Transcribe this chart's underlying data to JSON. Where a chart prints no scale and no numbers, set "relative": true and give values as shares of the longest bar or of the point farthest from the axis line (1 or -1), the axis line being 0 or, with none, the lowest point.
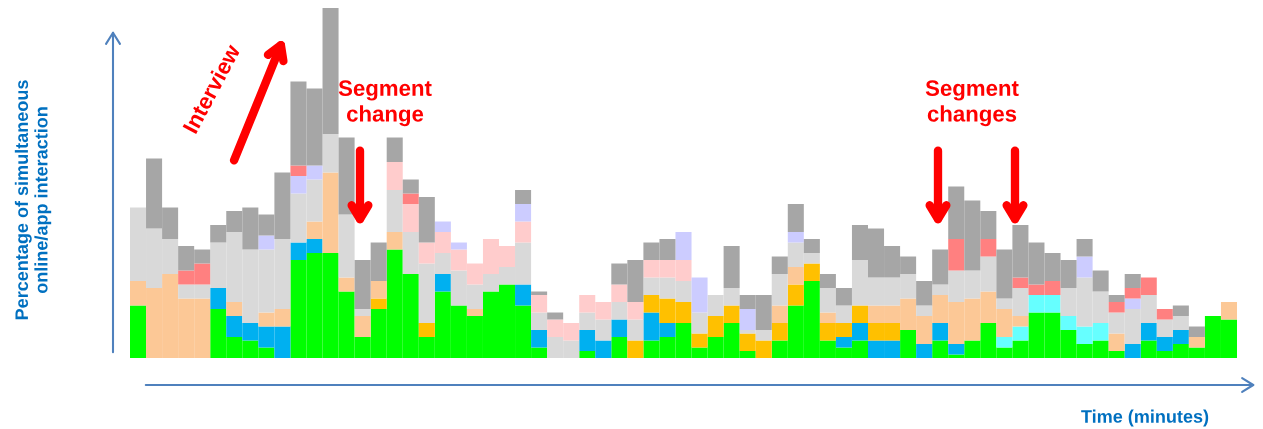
{
  "chart_data": {
    "type": "bar",
    "stacked": true,
    "relative": true,
    "xlabel": "Time (minutes)",
    "ylabel": "Percentage of simultaneous\nonline/app interaction",
    "annotations": [
      "Interview",
      "Segment\nchange",
      "Segment\nchanges"
    ],
    "categories": [
      null,
      null,
      null,
      null,
      null,
      null,
      null,
      null,
      null,
      null,
      null,
      null,
      null,
      null,
      null,
      null,
      null,
      null,
      null,
      null,
      null,
      null,
      null,
      null,
      null,
      null,
      null,
      null,
      null,
      null,
      null,
      null,
      null,
      null,
      null,
      null,
      null,
      null,
      null,
      null,
      null,
      null,
      null,
      null,
      null,
      null,
      null,
      null,
      null,
      null,
      null,
      null,
      null,
      null,
      null,
      null,
      null,
      null,
      null,
      null,
      null,
      null,
      null,
      null,
      null,
      null,
      null,
      null,
      null
    ],
    "series": [
      {
        "color": "#00ff00",
        "values": [
          0.15,
          0,
          0,
          0,
          0,
          0.14,
          0.06,
          0.05,
          0.03,
          0,
          0.28,
          0.3,
          0.3,
          0.19,
          0.06,
          0.14,
          0.31,
          0.24,
          0.06,
          0.19,
          0.15,
          0.12,
          0.19,
          0.21,
          0.15,
          0.03,
          0,
          0,
          0.02,
          0,
          0.06,
          0,
          0.05,
          0.06,
          0.1,
          0.03,
          0.06,
          0.1,
          0.02,
          0,
          0.05,
          0.15,
          0.22,
          0.05,
          0.03,
          0.05,
          0,
          0,
          0.08,
          0,
          0.05,
          0.01,
          0.05,
          0.1,
          0.03,
          0.05,
          0.13,
          0.13,
          0.08,
          0.04,
          0.05,
          0.02,
          0,
          0.05,
          0.02,
          0.04,
          0.03,
          0.12,
          0.11
        ]
      },
      {
        "color": "#00b0f0",
        "values": [
          0,
          0,
          0,
          0,
          0,
          0.06,
          0.06,
          0.05,
          0.06,
          0.09,
          0.05,
          0.04,
          0,
          0,
          0,
          0,
          0,
          0,
          0,
          0.05,
          0,
          0,
          0,
          0,
          0.06,
          0.05,
          0,
          0,
          0.06,
          0.05,
          0.05,
          0,
          0.08,
          0.04,
          0,
          0,
          0,
          0,
          0,
          0,
          0,
          0,
          0,
          0,
          0.03,
          0.05,
          0.05,
          0.05,
          0,
          0.04,
          0.05,
          0.03,
          0,
          0,
          0,
          0,
          0,
          0,
          0,
          0,
          0,
          0,
          0.04,
          0.05,
          0.04,
          0.04,
          0,
          0,
          0
        ]
      },
      {
        "color": "#66ffff",
        "values": [
          0,
          0,
          0,
          0,
          0,
          0,
          0,
          0,
          0,
          0,
          0,
          0,
          0,
          0,
          0,
          0,
          0,
          0,
          0,
          0,
          0,
          0,
          0,
          0,
          0,
          0,
          0,
          0,
          0,
          0,
          0,
          0,
          0,
          0,
          0,
          0,
          0,
          0,
          0,
          0,
          0,
          0,
          0,
          0,
          0,
          0,
          0,
          0,
          0,
          0,
          0,
          0,
          0,
          0,
          0.03,
          0.04,
          0.05,
          0.05,
          0.04,
          0.05,
          0.05,
          0,
          0,
          0,
          0,
          0,
          0,
          0,
          0
        ]
      },
      {
        "color": "#ffc000",
        "values": [
          0,
          0,
          0,
          0,
          0,
          0,
          0,
          0,
          0,
          0,
          0,
          0,
          0,
          0,
          0,
          0.03,
          0,
          0,
          0.04,
          0,
          0,
          0,
          0,
          0,
          0,
          0,
          0,
          0,
          0,
          0,
          0,
          0.05,
          0.05,
          0.07,
          0.06,
          0.04,
          0.06,
          0.05,
          0.05,
          0.05,
          0.05,
          0.06,
          0.05,
          0.05,
          0.04,
          0.05,
          0.05,
          0.05,
          0,
          0,
          0,
          0,
          0,
          0,
          0,
          0,
          0,
          0,
          0,
          0,
          0,
          0,
          0,
          0,
          0,
          0,
          0,
          0,
          0
        ]
      },
      {
        "color": "#fcc896",
        "values": [
          0.07,
          0.2,
          0.24,
          0.17,
          0.17,
          0,
          0.04,
          0,
          0.04,
          0.05,
          0,
          0.05,
          0.23,
          0.04,
          0.06,
          0.05,
          0.05,
          0,
          0,
          0,
          0,
          0.02,
          0,
          0,
          0,
          0,
          0,
          0,
          0,
          0,
          0,
          0,
          0,
          0,
          0,
          0,
          0,
          0,
          0,
          0,
          0.05,
          0.05,
          0,
          0.03,
          0,
          0,
          0.05,
          0.05,
          0.09,
          0.08,
          0.08,
          0.12,
          0.12,
          0.09,
          0.08,
          0.03,
          0,
          0,
          0,
          0,
          0,
          0.05,
          0,
          0,
          0,
          0,
          0.03,
          0,
          0.05
        ]
      },
      {
        "color": "#d9d9d9",
        "values": [
          0.21,
          0.17,
          0.1,
          0.04,
          0.04,
          0.13,
          0.2,
          0.21,
          0.18,
          0.2,
          0.14,
          0.12,
          0.11,
          0.18,
          0.02,
          0,
          0.12,
          0.12,
          0.17,
          0.06,
          0.1,
          0.07,
          0.05,
          0.05,
          0.12,
          0.05,
          0.06,
          0.05,
          0.05,
          0.06,
          0.05,
          0.06,
          0.05,
          0.06,
          0.06,
          0.06,
          0.06,
          0.05,
          0.01,
          0.03,
          0.09,
          0.07,
          0.03,
          0.07,
          0.05,
          0.13,
          0.08,
          0.08,
          0.07,
          0.03,
          0.03,
          0.09,
          0.08,
          0.1,
          0.03,
          0.08,
          0,
          0,
          0.08,
          0.14,
          0.09,
          0.06,
          0.1,
          0.08,
          0.05,
          0.04,
          0,
          0,
          0
        ]
      },
      {
        "color": "#ffcccc",
        "values": [
          0,
          0,
          0,
          0,
          0,
          0,
          0,
          0,
          0,
          0,
          0,
          0,
          0,
          0,
          0,
          0,
          0.08,
          0.08,
          0.06,
          0.06,
          0.06,
          0.06,
          0.1,
          0.06,
          0.06,
          0.05,
          0.05,
          0.05,
          0.05,
          0.05,
          0.05,
          0.05,
          0.05,
          0.05,
          0.06,
          0,
          0,
          0,
          0,
          0,
          0,
          0,
          0,
          0,
          0,
          0,
          0,
          0,
          0,
          0,
          0,
          0,
          0,
          0,
          0,
          0,
          0,
          0,
          0,
          0,
          0,
          0,
          0,
          0,
          0,
          0,
          0,
          0,
          0
        ]
      },
      {
        "color": "#ccccff",
        "values": [
          0,
          0,
          0,
          0,
          0,
          0,
          0,
          0,
          0.04,
          0,
          0.05,
          0.04,
          0,
          0,
          0,
          0,
          0,
          0,
          0,
          0.03,
          0.02,
          0,
          0,
          0,
          0.05,
          0,
          0,
          0,
          0,
          0,
          0,
          0,
          0,
          0,
          0.08,
          0.1,
          0,
          0,
          0.06,
          0,
          0,
          0.03,
          0,
          0,
          0,
          0,
          0,
          0,
          0,
          0,
          0,
          0,
          0,
          0,
          0,
          0,
          0,
          0,
          0,
          0.06,
          0,
          0,
          0.03,
          0,
          0,
          0,
          0,
          0,
          0
        ]
      },
      {
        "color": "#ff8080",
        "values": [
          0,
          0,
          0,
          0.04,
          0.06,
          0,
          0,
          0,
          0,
          0,
          0.03,
          0,
          0,
          0,
          0,
          0,
          0,
          0.03,
          0,
          0,
          0,
          0,
          0,
          0,
          0,
          0,
          0,
          0,
          0,
          0,
          0,
          0,
          0,
          0,
          0,
          0,
          0,
          0,
          0,
          0,
          0,
          0,
          0,
          0,
          0,
          0,
          0,
          0,
          0,
          0,
          0,
          0.09,
          0,
          0.05,
          0,
          0.03,
          0.03,
          0.04,
          0,
          0,
          0,
          0.03,
          0.03,
          0.05,
          0.03,
          0,
          0,
          0,
          0
        ]
      },
      {
        "color": "#a6a6a6",
        "values": [
          0,
          0.2,
          0.09,
          0.07,
          0.04,
          0.05,
          0.06,
          0.12,
          0.06,
          0.19,
          0.24,
          0.22,
          0.36,
          0.22,
          0.14,
          0.11,
          0.07,
          0.04,
          0.13,
          0,
          0,
          0,
          0,
          0,
          0.04,
          0.01,
          0.02,
          0,
          0,
          0,
          0.06,
          0.12,
          0.05,
          0.06,
          0,
          0,
          0,
          0.12,
          0.04,
          0.1,
          0.05,
          0.08,
          0.04,
          0.04,
          0.05,
          0.1,
          0.14,
          0.09,
          0.05,
          0.07,
          0.1,
          0.15,
          0.2,
          0.08,
          0.14,
          0.15,
          0.12,
          0.08,
          0.08,
          0.05,
          0.06,
          0.02,
          0.04,
          0,
          0,
          0.03,
          0.03,
          0,
          0
        ]
      }
    ]
  }
}
